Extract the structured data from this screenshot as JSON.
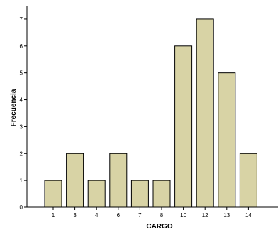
{
  "chart_data": {
    "type": "bar",
    "categories": [
      "1",
      "3",
      "4",
      "6",
      "7",
      "8",
      "10",
      "12",
      "13",
      "14"
    ],
    "values": [
      1,
      2,
      1,
      2,
      1,
      1,
      6,
      7,
      5,
      2
    ],
    "xlabel": "CARGO",
    "ylabel": "Frecuencia",
    "ylim": [
      0,
      7.5
    ],
    "yticks": [
      0,
      1,
      2,
      3,
      4,
      5,
      6,
      7
    ],
    "grid": false,
    "bar_color": "#d8d3a5",
    "bar_stroke": "#000000",
    "background": "#ffffff"
  }
}
